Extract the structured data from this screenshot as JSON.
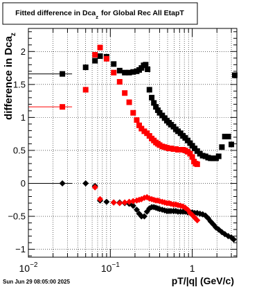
{
  "footer": {
    "timestamp": "Sun Jun 29 08:05:00 2025"
  },
  "chart_data": {
    "type": "scatter",
    "title": {
      "main": "Fitted difference in Dca",
      "sub": "z",
      "tail": "for Global Rec All EtapT"
    },
    "xlabel": "pT/|q| (GeV/c)",
    "ylabel": {
      "main": "difference in Dca",
      "sub": "z"
    },
    "x_scale": "log",
    "xlim": [
      0.01,
      3.5
    ],
    "ylim": [
      -1.12,
      2.35
    ],
    "grid": true,
    "x_tick_labels": [
      {
        "value": 0.01,
        "base": "10",
        "exp": "−2"
      },
      {
        "value": 0.1,
        "base": "10",
        "exp": "−1"
      },
      {
        "value": 1,
        "base": "1",
        "exp": ""
      }
    ],
    "y_ticks": [
      {
        "value": -1,
        "label": "−1"
      },
      {
        "value": -0.5,
        "label": "−0.5"
      },
      {
        "value": 0,
        "label": "0"
      },
      {
        "value": 0.5,
        "label": "0.5"
      },
      {
        "value": 1,
        "label": "1"
      },
      {
        "value": 1.5,
        "label": "1.5"
      },
      {
        "value": 2,
        "label": "2"
      }
    ],
    "series": [
      {
        "marker": "square",
        "color": "#000000",
        "points": [
          [
            0.026,
            1.66
          ],
          [
            0.05,
            1.76
          ],
          [
            0.065,
            1.86
          ],
          [
            0.075,
            1.93
          ],
          [
            0.09,
            1.92
          ],
          [
            0.11,
            1.81
          ],
          [
            0.13,
            1.71
          ],
          [
            0.15,
            1.68
          ],
          [
            0.17,
            1.68
          ],
          [
            0.19,
            1.69
          ],
          [
            0.21,
            1.7
          ],
          [
            0.225,
            1.72
          ],
          [
            0.24,
            1.75
          ],
          [
            0.255,
            1.79
          ],
          [
            0.27,
            1.8
          ],
          [
            0.285,
            1.73
          ],
          [
            0.3,
            1.42
          ],
          [
            0.32,
            1.3
          ],
          [
            0.34,
            1.22
          ],
          [
            0.36,
            1.16
          ],
          [
            0.38,
            1.11
          ],
          [
            0.4,
            1.07
          ],
          [
            0.43,
            1.03
          ],
          [
            0.46,
            0.99
          ],
          [
            0.49,
            0.95
          ],
          [
            0.52,
            0.92
          ],
          [
            0.55,
            0.89
          ],
          [
            0.59,
            0.86
          ],
          [
            0.63,
            0.82
          ],
          [
            0.67,
            0.79
          ],
          [
            0.72,
            0.76
          ],
          [
            0.77,
            0.72
          ],
          [
            0.82,
            0.69
          ],
          [
            0.88,
            0.65
          ],
          [
            0.94,
            0.61
          ],
          [
            1.0,
            0.57
          ],
          [
            1.07,
            0.53
          ],
          [
            1.15,
            0.49
          ],
          [
            1.24,
            0.45
          ],
          [
            1.34,
            0.42
          ],
          [
            1.45,
            0.41
          ],
          [
            1.56,
            0.39
          ],
          [
            1.68,
            0.38
          ],
          [
            1.8,
            0.38
          ],
          [
            1.95,
            0.38
          ],
          [
            2.1,
            0.41
          ],
          [
            2.3,
            0.55
          ],
          [
            2.5,
            0.71
          ],
          [
            2.75,
            0.71
          ],
          [
            3.0,
            0.59
          ],
          [
            3.3,
            1.64
          ]
        ]
      },
      {
        "marker": "square",
        "color": "#ff0000",
        "points": [
          [
            0.026,
            1.16
          ],
          [
            0.05,
            1.42
          ],
          [
            0.065,
            1.95
          ],
          [
            0.075,
            2.06
          ],
          [
            0.09,
            1.89
          ],
          [
            0.11,
            1.68
          ],
          [
            0.13,
            1.54
          ],
          [
            0.15,
            1.37
          ],
          [
            0.17,
            1.23
          ],
          [
            0.19,
            1.07
          ],
          [
            0.21,
            0.96
          ],
          [
            0.225,
            0.88
          ],
          [
            0.24,
            0.83
          ],
          [
            0.26,
            0.79
          ],
          [
            0.28,
            0.76
          ],
          [
            0.3,
            0.72
          ],
          [
            0.32,
            0.68
          ],
          [
            0.34,
            0.65
          ],
          [
            0.36,
            0.62
          ],
          [
            0.38,
            0.6
          ],
          [
            0.4,
            0.58
          ],
          [
            0.43,
            0.56
          ],
          [
            0.46,
            0.55
          ],
          [
            0.49,
            0.54
          ],
          [
            0.52,
            0.53
          ],
          [
            0.55,
            0.53
          ],
          [
            0.59,
            0.52
          ],
          [
            0.63,
            0.52
          ],
          [
            0.67,
            0.51
          ],
          [
            0.72,
            0.51
          ],
          [
            0.77,
            0.51
          ],
          [
            0.82,
            0.5
          ],
          [
            0.88,
            0.48
          ],
          [
            0.94,
            0.45
          ],
          [
            1.0,
            0.4
          ],
          [
            1.05,
            0.33
          ],
          [
            1.1,
            0.3
          ],
          [
            1.15,
            0.29
          ]
        ]
      },
      {
        "marker": "diamond",
        "color": "#000000",
        "points": [
          [
            0.026,
            0.0
          ],
          [
            0.05,
            0.0
          ],
          [
            0.065,
            -0.04
          ],
          [
            0.075,
            -0.26
          ],
          [
            0.09,
            -0.28
          ],
          [
            0.11,
            -0.29
          ],
          [
            0.13,
            -0.29
          ],
          [
            0.15,
            -0.3
          ],
          [
            0.17,
            -0.31
          ],
          [
            0.19,
            -0.34
          ],
          [
            0.21,
            -0.4
          ],
          [
            0.225,
            -0.46
          ],
          [
            0.24,
            -0.5
          ],
          [
            0.26,
            -0.5
          ],
          [
            0.28,
            -0.43
          ],
          [
            0.3,
            -0.38
          ],
          [
            0.32,
            -0.36
          ],
          [
            0.34,
            -0.36
          ],
          [
            0.36,
            -0.37
          ],
          [
            0.38,
            -0.38
          ],
          [
            0.4,
            -0.39
          ],
          [
            0.43,
            -0.4
          ],
          [
            0.46,
            -0.41
          ],
          [
            0.49,
            -0.42
          ],
          [
            0.52,
            -0.42
          ],
          [
            0.55,
            -0.42
          ],
          [
            0.59,
            -0.42
          ],
          [
            0.63,
            -0.42
          ],
          [
            0.67,
            -0.43
          ],
          [
            0.72,
            -0.43
          ],
          [
            0.77,
            -0.43
          ],
          [
            0.82,
            -0.43
          ],
          [
            0.88,
            -0.44
          ],
          [
            0.94,
            -0.44
          ],
          [
            1.0,
            -0.44
          ],
          [
            1.07,
            -0.45
          ],
          [
            1.15,
            -0.45
          ],
          [
            1.24,
            -0.46
          ],
          [
            1.34,
            -0.47
          ],
          [
            1.45,
            -0.49
          ],
          [
            1.56,
            -0.53
          ],
          [
            1.68,
            -0.58
          ],
          [
            1.8,
            -0.62
          ],
          [
            1.95,
            -0.67
          ],
          [
            2.1,
            -0.7
          ],
          [
            2.3,
            -0.74
          ],
          [
            2.5,
            -0.77
          ],
          [
            2.75,
            -0.8
          ],
          [
            3.0,
            -0.82
          ],
          [
            3.2,
            -0.85
          ]
        ]
      },
      {
        "marker": "diamond",
        "color": "#ff0000",
        "points": [
          [
            0.065,
            -0.06
          ],
          [
            0.075,
            -0.24
          ],
          [
            0.11,
            -0.29
          ],
          [
            0.13,
            -0.3
          ],
          [
            0.15,
            -0.29
          ],
          [
            0.17,
            -0.28
          ],
          [
            0.19,
            -0.27
          ],
          [
            0.21,
            -0.26
          ],
          [
            0.225,
            -0.25
          ],
          [
            0.24,
            -0.24
          ],
          [
            0.26,
            -0.22
          ],
          [
            0.28,
            -0.21
          ],
          [
            0.3,
            -0.23
          ],
          [
            0.32,
            -0.24
          ],
          [
            0.34,
            -0.25
          ],
          [
            0.36,
            -0.26
          ],
          [
            0.38,
            -0.26
          ],
          [
            0.4,
            -0.27
          ],
          [
            0.43,
            -0.28
          ],
          [
            0.46,
            -0.29
          ],
          [
            0.49,
            -0.3
          ],
          [
            0.52,
            -0.3
          ],
          [
            0.55,
            -0.31
          ],
          [
            0.59,
            -0.32
          ],
          [
            0.63,
            -0.32
          ],
          [
            0.67,
            -0.33
          ],
          [
            0.72,
            -0.34
          ],
          [
            0.77,
            -0.35
          ],
          [
            0.82,
            -0.37
          ],
          [
            0.88,
            -0.4
          ],
          [
            0.94,
            -0.45
          ],
          [
            1.0,
            -0.48
          ],
          [
            1.07,
            -0.52
          ],
          [
            1.15,
            -0.56
          ]
        ]
      }
    ]
  }
}
